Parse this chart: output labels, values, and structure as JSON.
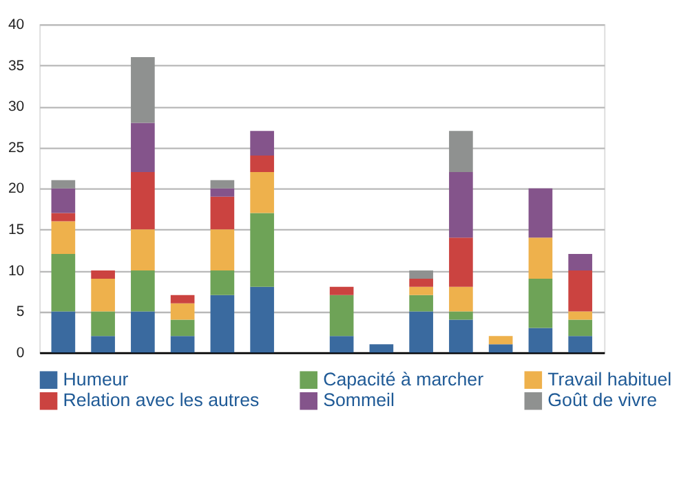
{
  "chart_data": {
    "type": "bar",
    "stacked": true,
    "categories": [
      null,
      null,
      null,
      null,
      null,
      null,
      null,
      null,
      null,
      null,
      null,
      null,
      null,
      null
    ],
    "series": [
      {
        "name": "Humeur",
        "color": "#3a6a9f",
        "values": [
          5,
          2,
          5,
          2,
          7,
          8,
          0,
          2,
          1,
          5,
          4,
          1,
          3,
          2
        ]
      },
      {
        "name": "Capacité à marcher",
        "color": "#6ea357",
        "values": [
          7,
          3,
          5,
          2,
          3,
          9,
          0,
          5,
          0,
          2,
          1,
          0,
          6,
          2
        ]
      },
      {
        "name": "Travail habituel",
        "color": "#eeb14c",
        "values": [
          4,
          4,
          5,
          2,
          5,
          5,
          0,
          0,
          0,
          1,
          3,
          1,
          5,
          1
        ]
      },
      {
        "name": "Relation avec les autres",
        "color": "#cb4340",
        "values": [
          1,
          1,
          7,
          1,
          4,
          2,
          0,
          1,
          0,
          1,
          6,
          0,
          0,
          5
        ]
      },
      {
        "name": "Sommeil",
        "color": "#84548b",
        "values": [
          3,
          0,
          6,
          0,
          1,
          3,
          0,
          0,
          0,
          0,
          8,
          0,
          6,
          2
        ]
      },
      {
        "name": "Goût de vivre",
        "color": "#8f9190",
        "values": [
          1,
          0,
          8,
          0,
          1,
          0,
          0,
          0,
          0,
          1,
          5,
          0,
          0,
          0
        ]
      }
    ],
    "ylim": [
      0,
      40
    ],
    "yticks": [
      0,
      5,
      10,
      15,
      20,
      25,
      30,
      35,
      40
    ],
    "grid": "y",
    "legend": "bottom",
    "tick_labels": "y"
  }
}
